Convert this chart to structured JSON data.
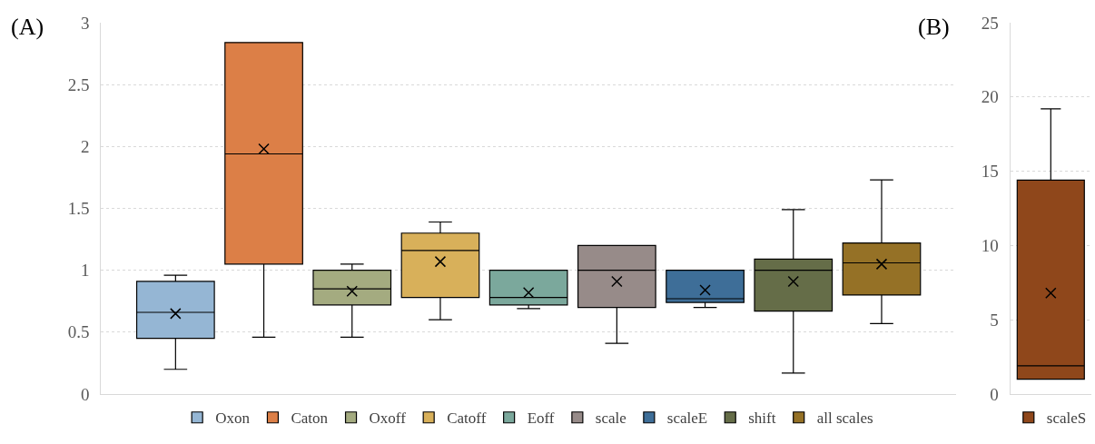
{
  "chart_data": [
    {
      "type": "box",
      "annotations": [
        "(A)"
      ],
      "categories": [
        null
      ],
      "ylim": [
        0,
        3
      ],
      "yticks": [
        0,
        0.5,
        1,
        1.5,
        2,
        2.5,
        3
      ],
      "grid": "y",
      "legend": "bottom",
      "tick_labels": "y",
      "marker": "cross",
      "series": [
        {
          "name": "Oxon",
          "color": "#95b6d4",
          "boxes": [
            {
              "low": 0.2,
              "q1": 0.45,
              "median": 0.66,
              "q3": 0.91,
              "high": 0.96,
              "mean": 0.65
            }
          ]
        },
        {
          "name": "Caton",
          "color": "#dc7f47",
          "boxes": [
            {
              "low": 0.46,
              "q1": 1.05,
              "median": 1.94,
              "q3": 2.84,
              "high": 2.84,
              "mean": 1.98
            }
          ]
        },
        {
          "name": "Oxoff",
          "color": "#a4ab80",
          "boxes": [
            {
              "low": 0.46,
              "q1": 0.72,
              "median": 0.85,
              "q3": 1.0,
              "high": 1.05,
              "mean": 0.83
            }
          ]
        },
        {
          "name": "Catoff",
          "color": "#d8b05a",
          "boxes": [
            {
              "low": 0.6,
              "q1": 0.78,
              "median": 1.16,
              "q3": 1.3,
              "high": 1.39,
              "mean": 1.07
            }
          ]
        },
        {
          "name": "Eoff",
          "color": "#7ba89c",
          "boxes": [
            {
              "low": 0.69,
              "q1": 0.72,
              "median": 0.78,
              "q3": 1.0,
              "high": 1.0,
              "mean": 0.82
            }
          ]
        },
        {
          "name": "scale",
          "color": "#978b89",
          "boxes": [
            {
              "low": 0.41,
              "q1": 0.7,
              "median": 1.0,
              "q3": 1.2,
              "high": 1.2,
              "mean": 0.91
            }
          ]
        },
        {
          "name": "scaleE",
          "color": "#3e6e98",
          "boxes": [
            {
              "low": 0.7,
              "q1": 0.74,
              "median": 0.77,
              "q3": 1.0,
              "high": 1.0,
              "mean": 0.84
            }
          ]
        },
        {
          "name": "shift",
          "color": "#656d48",
          "boxes": [
            {
              "low": 0.17,
              "q1": 0.67,
              "median": 1.0,
              "q3": 1.09,
              "high": 1.49,
              "mean": 0.91
            }
          ]
        },
        {
          "name": "all scales",
          "color": "#957126",
          "boxes": [
            {
              "low": 0.57,
              "q1": 0.8,
              "median": 1.06,
              "q3": 1.22,
              "high": 1.73,
              "mean": 1.05
            }
          ]
        }
      ]
    },
    {
      "type": "box",
      "annotations": [
        "(B)"
      ],
      "categories": [
        null
      ],
      "ylim": [
        0,
        25
      ],
      "yticks": [
        0,
        5,
        10,
        15,
        20,
        25
      ],
      "grid": "y",
      "legend": "bottom",
      "tick_labels": "y",
      "marker": "cross",
      "series": [
        {
          "name": "scaleS",
          "color": "#8f471b",
          "boxes": [
            {
              "low": 1.0,
              "q1": 1.0,
              "median": 1.9,
              "q3": 14.4,
              "high": 19.2,
              "mean": 6.8
            }
          ]
        }
      ]
    }
  ]
}
